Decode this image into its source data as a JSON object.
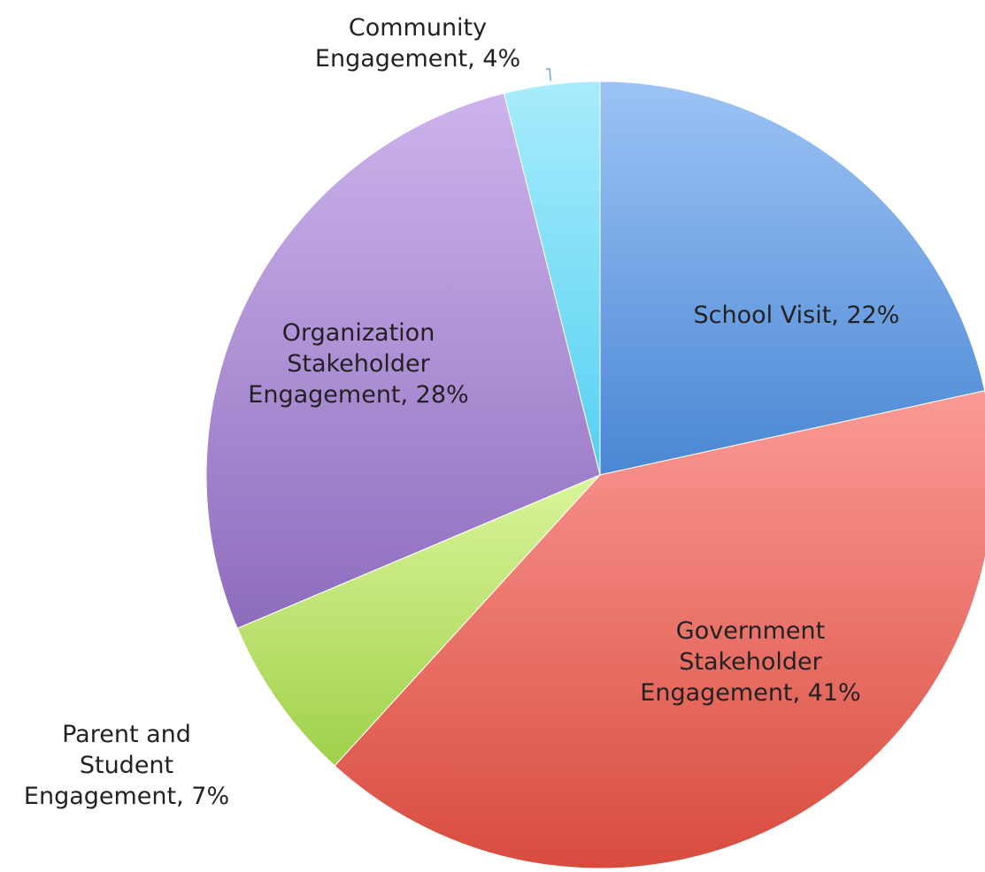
{
  "chart_data": {
    "type": "pie",
    "title": "",
    "slices": [
      {
        "name": "School Visit",
        "value": 22,
        "label_lines": [
          "School Visit, 22%"
        ],
        "color_light": "#9cc3f5",
        "color_dark": "#4a87d4"
      },
      {
        "name": "Government Stakeholder Engagement",
        "value": 41,
        "label_lines": [
          "Government",
          "Stakeholder",
          "Engagement, 41%"
        ],
        "color_light": "#fb9a95",
        "color_dark": "#d84c3e"
      },
      {
        "name": "Parent and Student Engagement",
        "value": 7,
        "label_lines": [
          "Parent and",
          "Student",
          "Engagement, 7%"
        ],
        "color_light": "#dbf59a",
        "color_dark": "#9fd04a"
      },
      {
        "name": "Organization Stakeholder Engagement",
        "value": 28,
        "label_lines": [
          "Organization",
          "Stakeholder",
          "Engagement, 28%"
        ],
        "color_light": "#cdb3ec",
        "color_dark": "#8e6cbd"
      },
      {
        "name": "Community Engagement",
        "value": 4,
        "label_lines": [
          "Community",
          "Engagement, 4%"
        ],
        "color_light": "#a7ecfc",
        "color_dark": "#55d0f1"
      }
    ],
    "start_angle_deg": 0,
    "direction": "clockwise",
    "legend": "none"
  }
}
